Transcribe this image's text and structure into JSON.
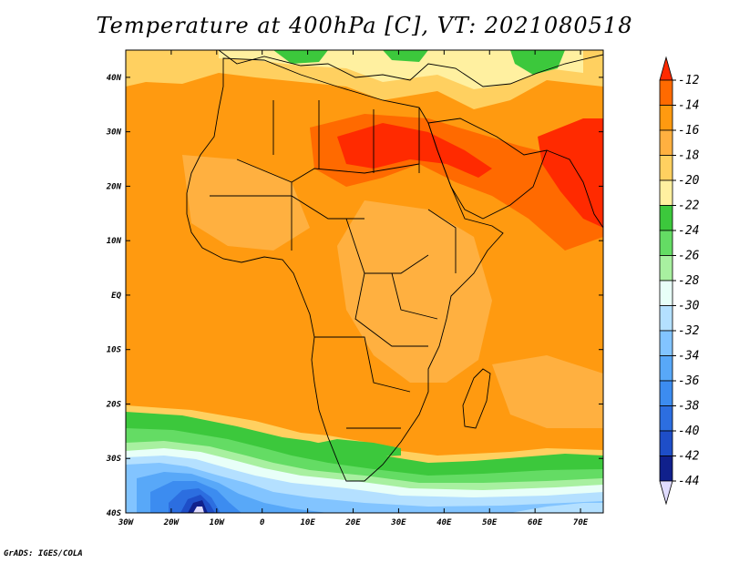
{
  "title": "Temperature at 400hPa [C], VT: 2021080518",
  "credit": "GrADS: IGES/COLA",
  "map": {
    "lon_range": [
      -30,
      75
    ],
    "lat_range": [
      -40,
      45
    ],
    "lon_ticks": [
      {
        "value": -30,
        "label": "30W"
      },
      {
        "value": -20,
        "label": "20W"
      },
      {
        "value": -10,
        "label": "10W"
      },
      {
        "value": 0,
        "label": "0"
      },
      {
        "value": 10,
        "label": "10E"
      },
      {
        "value": 20,
        "label": "20E"
      },
      {
        "value": 30,
        "label": "30E"
      },
      {
        "value": 40,
        "label": "40E"
      },
      {
        "value": 50,
        "label": "50E"
      },
      {
        "value": 60,
        "label": "60E"
      },
      {
        "value": 70,
        "label": "70E"
      }
    ],
    "lat_ticks": [
      {
        "value": 40,
        "label": "40N"
      },
      {
        "value": 30,
        "label": "30N"
      },
      {
        "value": 20,
        "label": "20N"
      },
      {
        "value": 10,
        "label": "10N"
      },
      {
        "value": 0,
        "label": "EQ"
      },
      {
        "value": -10,
        "label": "10S"
      },
      {
        "value": -20,
        "label": "20S"
      },
      {
        "value": -30,
        "label": "30S"
      },
      {
        "value": -40,
        "label": "40S"
      }
    ]
  },
  "colorbar": {
    "levels": [
      "-12",
      "-14",
      "-16",
      "-18",
      "-20",
      "-22",
      "-24",
      "-26",
      "-28",
      "-30",
      "-32",
      "-34",
      "-36",
      "-38",
      "-40",
      "-42",
      "-44"
    ],
    "colors": [
      "#ff2a00",
      "#ff6a00",
      "#ff9a10",
      "#ffb040",
      "#ffd060",
      "#fff0a0",
      "#3cc83c",
      "#64dc64",
      "#a8f0a0",
      "#e8fff8",
      "#b4e0ff",
      "#82c4ff",
      "#58a8f8",
      "#3c8cf0",
      "#2c6ee0",
      "#1e4ec8",
      "#10208c",
      "#e0dcff"
    ]
  },
  "field": {
    "fill_colors": {
      "background": "#ff9a10",
      "warm": "#ffb040",
      "hot": "#ff6a00",
      "hottest": "#ff2a00",
      "cool": "#ffd060",
      "cooler": "#fff0a0",
      "green": "#3cc83c",
      "lightgreen": "#64dc64",
      "palegreen": "#a8f0a0",
      "white": "#e8fff8",
      "lightblue": "#b4e0ff",
      "blue": "#82c4ff",
      "midblue": "#58a8f8",
      "deepblue": "#3c8cf0",
      "darkblue": "#2c6ee0",
      "navy": "#1e4ec8",
      "darknavy": "#10208c",
      "lavender": "#e0dcff"
    },
    "coastline_color": "#000000"
  }
}
